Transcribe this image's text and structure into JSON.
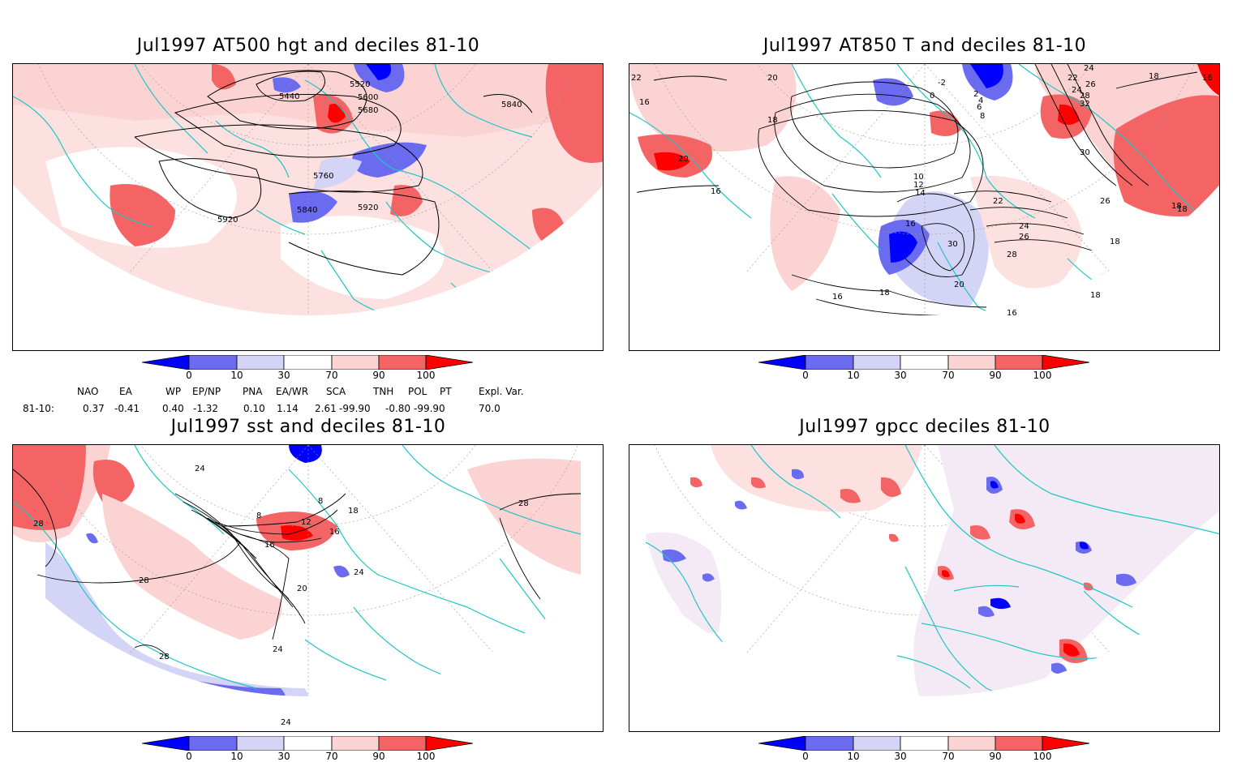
{
  "panels": {
    "hgt": {
      "title": "Jul1997 AT500 hgt and deciles 81-10",
      "contour_labels": [
        "5440",
        "5520",
        "5600",
        "5680",
        "5840",
        "5760",
        "5840",
        "5920",
        "5920"
      ]
    },
    "t850": {
      "title": "Jul1997 AT850 T and deciles 81-10",
      "contour_labels": [
        "20",
        "22",
        "16",
        "18",
        "20",
        "16",
        "10",
        "12",
        "14",
        "16",
        "22",
        "24",
        "26",
        "28",
        "30",
        "30",
        "26",
        "18",
        "18",
        "16",
        "18",
        "16",
        "18",
        "18",
        "-2",
        "0",
        "2",
        "4",
        "6",
        "8",
        "24",
        "26",
        "32",
        "28",
        "24",
        "22",
        "20",
        "18",
        "16"
      ]
    },
    "sst": {
      "title": "Jul1997 sst and deciles 81-10",
      "contour_labels": [
        "28",
        "28",
        "28",
        "24",
        "20",
        "16",
        "12",
        "8",
        "8",
        "18",
        "16",
        "24",
        "28",
        "24",
        "24"
      ]
    },
    "gpcc": {
      "title": "Jul1997 gpcc deciles 81-10"
    }
  },
  "colorbar": {
    "labels": [
      "0",
      "10",
      "30",
      "70",
      "90",
      "100"
    ],
    "colors": [
      "#0000ff",
      "#6b6bf0",
      "#d4d4f7",
      "#ffffff",
      "#fbd3d3",
      "#f56464",
      "#ff0000"
    ]
  },
  "indices": {
    "row_label": "81-10:",
    "headers": [
      "NAO",
      "EA",
      "WP",
      "EP/NP",
      "PNA",
      "EA/WR",
      "SCA",
      "TNH",
      "POL",
      "PT",
      "Expl. Var."
    ],
    "values": [
      "0.37",
      "-0.41",
      "0.40",
      "-1.32",
      "0.10",
      "1.14",
      "2.61",
      "-99.90",
      "-0.80",
      "-99.90",
      "70.0"
    ]
  },
  "icons": {
    "map": "polar-stereographic-map"
  }
}
